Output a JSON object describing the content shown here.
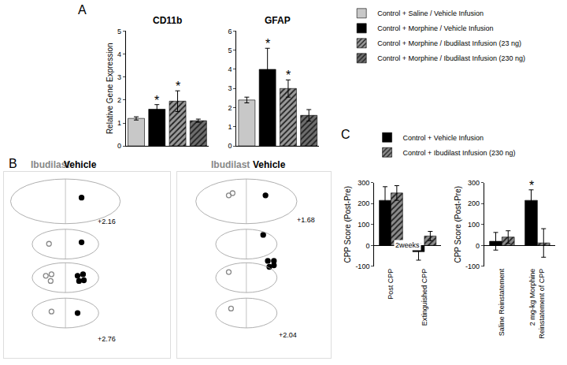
{
  "chart_data": [
    {
      "panel_label": "A",
      "type": "bar",
      "title": "CD11b",
      "y_label": "Relative Gene Expression",
      "ylim": [
        0,
        5
      ],
      "yticks": [
        0,
        1,
        2,
        3,
        4,
        5
      ],
      "tick_labels": "y",
      "legend": "upper right",
      "series": [
        {
          "name": "Control + Saline / Vehicle Infusion",
          "color": "#c8c8c8",
          "marker": "solid",
          "values": [
            1.2
          ],
          "errors": [
            0.07
          ]
        },
        {
          "name": "Control + Morphine / Vehicle Infusion",
          "color": "#000000",
          "marker": "solid",
          "values": [
            1.6
          ],
          "errors": [
            0.2
          ]
        },
        {
          "name": "Control + Morphine / Ibudilast Infusion (23 ng)",
          "color": "#9a9a9a",
          "marker": "hatched",
          "values": [
            1.95
          ],
          "errors": [
            0.45
          ]
        },
        {
          "name": "Control + Morphine / Ibudilast Infusion (230 ng)",
          "color": "#6e6e6e",
          "marker": "hatched",
          "values": [
            1.1
          ],
          "errors": [
            0.07
          ]
        }
      ],
      "annotations": [
        {
          "series": "Control + Morphine / Vehicle Infusion",
          "text": "*"
        },
        {
          "series": "Control + Morphine / Ibudilast Infusion (23 ng)",
          "text": "*"
        }
      ]
    },
    {
      "type": "bar",
      "title": "GFAP",
      "ylim": [
        0,
        6
      ],
      "yticks": [
        0,
        1,
        2,
        3,
        4,
        5,
        6
      ],
      "tick_labels": "y",
      "series": [
        {
          "name": "Control + Saline / Vehicle Infusion",
          "color": "#c8c8c8",
          "marker": "solid",
          "values": [
            2.4
          ],
          "errors": [
            0.15
          ]
        },
        {
          "name": "Control + Morphine / Vehicle Infusion",
          "color": "#000000",
          "marker": "solid",
          "values": [
            4.0
          ],
          "errors": [
            1.1
          ]
        },
        {
          "name": "Control + Morphine / Ibudilast Infusion (23 ng)",
          "color": "#9a9a9a",
          "marker": "hatched",
          "values": [
            3.0
          ],
          "errors": [
            0.45
          ]
        },
        {
          "name": "Control + Morphine / Ibudilast Infusion (230 ng)",
          "color": "#6e6e6e",
          "marker": "hatched",
          "values": [
            1.6
          ],
          "errors": [
            0.3
          ]
        }
      ],
      "annotations": [
        {
          "series": "Control + Morphine / Vehicle Infusion",
          "text": "*"
        },
        {
          "series": "Control + Morphine / Ibudilast Infusion (23 ng)",
          "text": "*"
        }
      ]
    },
    {
      "panel_label": "B",
      "type": "scatter",
      "xlim": [
        0,
        100
      ],
      "ylim": [
        0,
        100
      ],
      "tick_labels": false,
      "series": [
        {
          "name": "Ibudilast",
          "color": "#888888",
          "marker": "open",
          "x": [
            27.1,
            25.2,
            28.6,
            28.1,
            28.6
          ],
          "y": [
            61.2,
            44,
            44.8,
            41.2,
            24.8
          ]
        },
        {
          "name": "Vehicle",
          "color": "#000000",
          "marker": "filled",
          "x": [
            46.7,
            46.7,
            44.3,
            47.6,
            45.2,
            48.1,
            44.3
          ],
          "y": [
            86,
            62,
            44,
            44.8,
            41.2,
            41.6,
            24
          ]
        }
      ],
      "annotations": [
        {
          "text": "+2.16",
          "x": 62,
          "y": 73
        },
        {
          "text": "+2.76",
          "x": 62,
          "y": 10
        }
      ]
    },
    {
      "type": "scatter",
      "xlim": [
        0,
        100
      ],
      "ylim": [
        0,
        100
      ],
      "tick_labels": false,
      "series": [
        {
          "name": "Ibudilast",
          "color": "#888888",
          "marker": "open",
          "x": [
            33.5,
            36,
            33.5,
            35
          ],
          "y": [
            87.2,
            88.4,
            46,
            26.4
          ]
        },
        {
          "name": "Vehicle",
          "color": "#000000",
          "marker": "filled",
          "x": [
            57.5,
            56,
            59,
            63,
            60,
            63
          ],
          "y": [
            87.2,
            66,
            52,
            52,
            48.8,
            49.6
          ]
        }
      ],
      "annotations": [
        {
          "text": "+1.68",
          "x": 84,
          "y": 74
        },
        {
          "text": "+2.04",
          "x": 72,
          "y": 12
        }
      ]
    },
    {
      "panel_label": "C",
      "type": "bar",
      "categories": [
        "Post CPP",
        "Extinguished CPP"
      ],
      "y_label": "CPP Score (Post-Pre)",
      "ylim": [
        -100,
        300
      ],
      "yticks": [
        -100,
        0,
        100,
        200,
        300
      ],
      "legend": "top",
      "series": [
        {
          "name": "Control + Vehicle Infusion",
          "color": "#000000",
          "marker": "solid",
          "values": [
            215,
            -30
          ],
          "errors": [
            65,
            40
          ]
        },
        {
          "name": "Control + Ibudilast Infusion (230 ng)",
          "color": "#8c8c8c",
          "marker": "hatched",
          "values": [
            250,
            45
          ],
          "errors": [
            35,
            22
          ]
        }
      ],
      "annotations": [
        {
          "text": "2weeks",
          "x": 0.5,
          "y": 0
        }
      ]
    },
    {
      "type": "bar",
      "categories": [
        "Saline Reinstatement",
        "2 mg-kg Morphine Reinstatement of CPP"
      ],
      "y_label": "CPP Score (Post-Pre)",
      "ylim": [
        -100,
        300
      ],
      "yticks": [
        -100,
        0,
        100,
        200,
        300
      ],
      "series": [
        {
          "name": "Control + Vehicle Infusion",
          "color": "#000000",
          "marker": "solid",
          "values": [
            20,
            215
          ],
          "errors": [
            42,
            50
          ]
        },
        {
          "name": "Control + Ibudilast Infusion (230 ng)",
          "color": "#8c8c8c",
          "marker": "hatched",
          "values": [
            40,
            12
          ],
          "errors": [
            30,
            68
          ]
        }
      ],
      "annotations": [
        {
          "series": "Control + Vehicle Infusion",
          "category": "2 mg-kg Morphine Reinstatement of CPP",
          "text": "*"
        }
      ]
    }
  ]
}
